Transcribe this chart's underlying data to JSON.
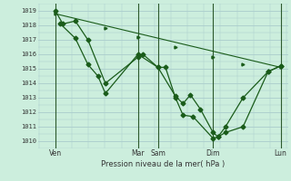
{
  "xlabel": "Pression niveau de la mer( hPa )",
  "ylim": [
    1009.5,
    1019.5
  ],
  "yticks": [
    1010,
    1011,
    1012,
    1013,
    1014,
    1015,
    1016,
    1017,
    1018,
    1019
  ],
  "bg_color": "#cceedd",
  "grid_color": "#aacccc",
  "line_color": "#1a5c1a",
  "xtick_labels": [
    "Ven",
    "Mar",
    "Sam",
    "Dim",
    "Lun"
  ],
  "xtick_positions": [
    0.07,
    0.4,
    0.48,
    0.7,
    0.97
  ],
  "vline_positions": [
    0.07,
    0.4,
    0.48,
    0.7,
    0.97
  ],
  "series1_x": [
    0.07,
    0.1,
    0.15,
    0.2,
    0.27,
    0.4,
    0.42,
    0.48,
    0.51,
    0.55,
    0.58,
    0.62,
    0.7,
    0.72,
    0.75,
    0.82,
    0.92,
    0.97
  ],
  "series1_y": [
    1019.0,
    1018.1,
    1018.3,
    1017.0,
    1014.0,
    1015.8,
    1016.0,
    1015.1,
    1015.1,
    1013.0,
    1011.8,
    1011.7,
    1010.2,
    1010.3,
    1010.6,
    1011.0,
    1014.8,
    1015.2
  ],
  "series2_x": [
    0.09,
    0.15,
    0.2,
    0.24,
    0.27,
    0.4,
    0.48,
    0.55,
    0.58,
    0.61,
    0.65,
    0.7,
    0.72,
    0.75,
    0.82,
    0.92,
    0.97
  ],
  "series2_y": [
    1018.1,
    1017.1,
    1015.3,
    1014.5,
    1013.3,
    1016.0,
    1015.1,
    1013.1,
    1012.6,
    1013.2,
    1012.2,
    1010.6,
    1010.3,
    1011.0,
    1013.0,
    1014.8,
    1015.2
  ],
  "trend_x": [
    0.07,
    0.97
  ],
  "trend_y": [
    1018.8,
    1015.1
  ],
  "trend_markers_x": [
    0.07,
    0.15,
    0.27,
    0.4,
    0.55,
    0.7,
    0.82,
    0.97
  ],
  "trend_markers_y": [
    1018.8,
    1018.3,
    1017.8,
    1017.2,
    1016.5,
    1015.8,
    1015.3,
    1015.1
  ]
}
